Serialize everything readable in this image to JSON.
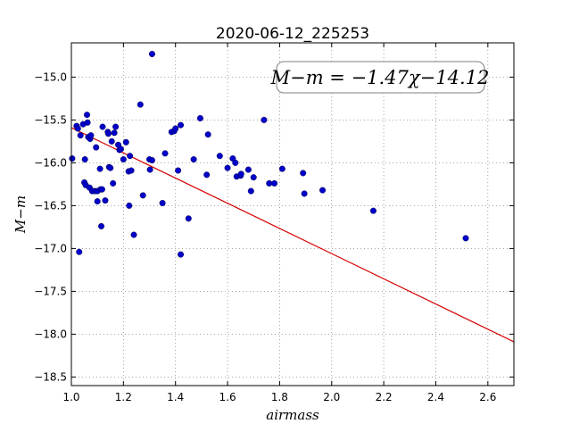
{
  "chart_data": {
    "type": "scatter",
    "title": "2020-06-12_225253",
    "xlabel": "airmass",
    "ylabel": "M−m",
    "xlim": [
      1.0,
      2.7
    ],
    "ylim": [
      -18.6,
      -14.6
    ],
    "y_inverted": true,
    "grid": true,
    "x_ticks": [
      1.0,
      1.2,
      1.4,
      1.6,
      1.8,
      2.0,
      2.2,
      2.4,
      2.6
    ],
    "x_tick_labels": [
      "1.0",
      "1.2",
      "1.4",
      "1.6",
      "1.8",
      "2.0",
      "2.2",
      "2.4",
      "2.6"
    ],
    "y_ticks": [
      -15.0,
      -15.5,
      -16.0,
      -16.5,
      -17.0,
      -17.5,
      -18.0,
      -18.5
    ],
    "y_tick_labels": [
      "−15.0",
      "−15.5",
      "−16.0",
      "−16.5",
      "−17.0",
      "−17.5",
      "−18.0",
      "−18.5"
    ],
    "annotation": "M−m = −1.47χ−14.12",
    "fit": {
      "slope": -1.47,
      "intercept": -14.12,
      "color": "#d40000"
    },
    "marker_color": "#0000c8",
    "points": [
      [
        1.003,
        -15.95
      ],
      [
        1.02,
        -15.57
      ],
      [
        1.025,
        -15.6
      ],
      [
        1.03,
        -17.04
      ],
      [
        1.035,
        -15.68
      ],
      [
        1.045,
        -15.55
      ],
      [
        1.05,
        -16.23
      ],
      [
        1.052,
        -15.96
      ],
      [
        1.055,
        -16.26
      ],
      [
        1.06,
        -15.44
      ],
      [
        1.062,
        -15.53
      ],
      [
        1.065,
        -15.7
      ],
      [
        1.07,
        -16.29
      ],
      [
        1.072,
        -15.72
      ],
      [
        1.075,
        -15.68
      ],
      [
        1.08,
        -16.33
      ],
      [
        1.09,
        -16.33
      ],
      [
        1.095,
        -15.82
      ],
      [
        1.1,
        -16.33
      ],
      [
        1.1,
        -16.45
      ],
      [
        1.11,
        -16.07
      ],
      [
        1.112,
        -16.31
      ],
      [
        1.115,
        -16.74
      ],
      [
        1.118,
        -16.31
      ],
      [
        1.12,
        -15.58
      ],
      [
        1.13,
        -16.44
      ],
      [
        1.14,
        -15.64
      ],
      [
        1.142,
        -15.66
      ],
      [
        1.145,
        -16.05
      ],
      [
        1.15,
        -16.06
      ],
      [
        1.155,
        -15.75
      ],
      [
        1.16,
        -16.24
      ],
      [
        1.165,
        -15.65
      ],
      [
        1.17,
        -15.58
      ],
      [
        1.18,
        -15.79
      ],
      [
        1.185,
        -15.85
      ],
      [
        1.19,
        -15.84
      ],
      [
        1.2,
        -15.96
      ],
      [
        1.21,
        -15.76
      ],
      [
        1.22,
        -16.1
      ],
      [
        1.222,
        -16.5
      ],
      [
        1.225,
        -15.92
      ],
      [
        1.23,
        -16.09
      ],
      [
        1.24,
        -16.84
      ],
      [
        1.265,
        -15.32
      ],
      [
        1.275,
        -16.38
      ],
      [
        1.3,
        -15.96
      ],
      [
        1.302,
        -16.08
      ],
      [
        1.31,
        -15.97
      ],
      [
        1.31,
        -14.73
      ],
      [
        1.35,
        -16.47
      ],
      [
        1.36,
        -15.89
      ],
      [
        1.385,
        -15.64
      ],
      [
        1.395,
        -15.63
      ],
      [
        1.4,
        -15.6
      ],
      [
        1.41,
        -16.09
      ],
      [
        1.42,
        -15.56
      ],
      [
        1.42,
        -17.07
      ],
      [
        1.45,
        -16.65
      ],
      [
        1.47,
        -15.96
      ],
      [
        1.495,
        -15.48
      ],
      [
        1.52,
        -16.14
      ],
      [
        1.525,
        -15.67
      ],
      [
        1.57,
        -15.92
      ],
      [
        1.6,
        -16.06
      ],
      [
        1.62,
        -15.95
      ],
      [
        1.63,
        -16.0
      ],
      [
        1.635,
        -16.16
      ],
      [
        1.65,
        -16.15
      ],
      [
        1.652,
        -16.13
      ],
      [
        1.68,
        -16.08
      ],
      [
        1.69,
        -16.33
      ],
      [
        1.7,
        -16.17
      ],
      [
        1.74,
        -15.5
      ],
      [
        1.76,
        -16.24
      ],
      [
        1.78,
        -16.24
      ],
      [
        1.81,
        -16.07
      ],
      [
        1.89,
        -16.12
      ],
      [
        1.895,
        -16.36
      ],
      [
        1.965,
        -16.32
      ],
      [
        2.16,
        -16.56
      ],
      [
        2.515,
        -16.88
      ]
    ]
  }
}
